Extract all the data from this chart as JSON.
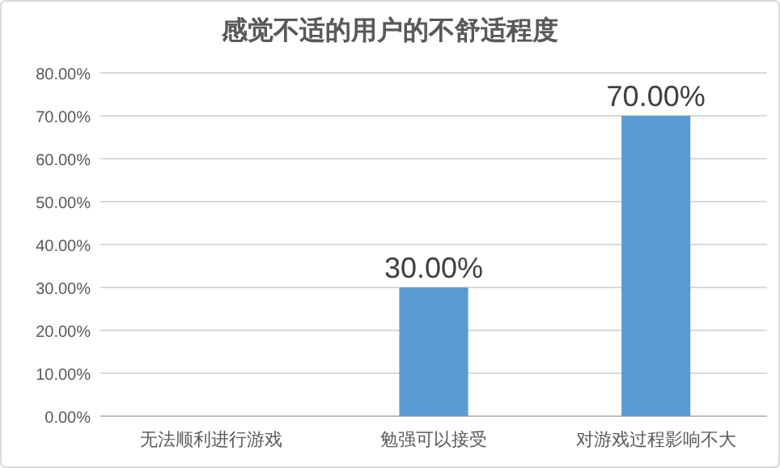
{
  "chart_data": {
    "type": "bar",
    "title": "感觉不适的用户的不舒适程度",
    "categories": [
      "无法顺利进行游戏",
      "勉强可以接受",
      "对游戏过程影响不大"
    ],
    "values": [
      0,
      30,
      70
    ],
    "color": "#5b9bd5",
    "value_labels": [
      null,
      "30.00%",
      "70.00%"
    ],
    "ylim": [
      0,
      80
    ],
    "yticks": [
      {
        "value": 0,
        "label": "0.00%"
      },
      {
        "value": 10,
        "label": "10.00%"
      },
      {
        "value": 20,
        "label": "20.00%"
      },
      {
        "value": 30,
        "label": "30.00%"
      },
      {
        "value": 40,
        "label": "40.00%"
      },
      {
        "value": 50,
        "label": "50.00%"
      },
      {
        "value": 60,
        "label": "60.00%"
      },
      {
        "value": 70,
        "label": "70.00%"
      },
      {
        "value": 80,
        "label": "80.00%"
      }
    ],
    "grid": "y"
  }
}
